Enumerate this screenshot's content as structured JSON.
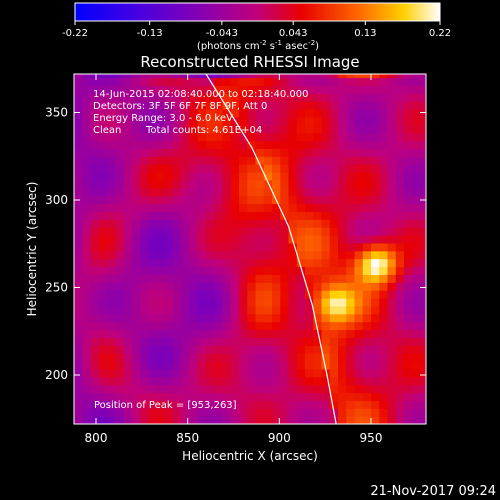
{
  "chart_data": {
    "type": "heatmap",
    "title": "Reconstructed RHESSI Image",
    "xlabel": "Heliocentric X (arcsec)",
    "ylabel": "Heliocentric Y (arcsec)",
    "xlim": [
      788,
      980
    ],
    "ylim": [
      172,
      372
    ],
    "xticks": [
      800,
      850,
      900,
      950
    ],
    "yticks": [
      200,
      250,
      300,
      350
    ],
    "colorbar": {
      "range": [
        -0.22,
        0.22
      ],
      "ticks": [
        "-0.22",
        "-0.13",
        "-0.043",
        "0.043",
        "0.13",
        "0.22"
      ],
      "unit_parts": [
        "(photons cm",
        "-2",
        " s",
        "-1",
        " asec",
        "-2",
        ")"
      ]
    },
    "annotations": [
      "14-Jun-2015 02:08:40.000 to 02:18:40.000",
      "Detectors: 3F 5F 6F 7F 8F 9F, Att 0",
      "Energy Range: 3.0 - 6.0 keV",
      "Clean",
      "Total counts: 4.61E+04"
    ],
    "peak_label": "Position of Peak = [953,263]",
    "peak": {
      "x": 953,
      "y": 263,
      "value": 0.22
    },
    "sources": [
      {
        "x": 953,
        "y": 264,
        "peak": 0.22
      },
      {
        "x": 930,
        "y": 241,
        "peak": 0.16
      }
    ],
    "limb_points": [
      [
        860,
        372
      ],
      [
        885,
        330
      ],
      [
        905,
        285
      ],
      [
        918,
        240
      ],
      [
        926,
        200
      ],
      [
        931,
        172
      ]
    ],
    "date_stamp": "21-Nov-2017 09:24"
  }
}
